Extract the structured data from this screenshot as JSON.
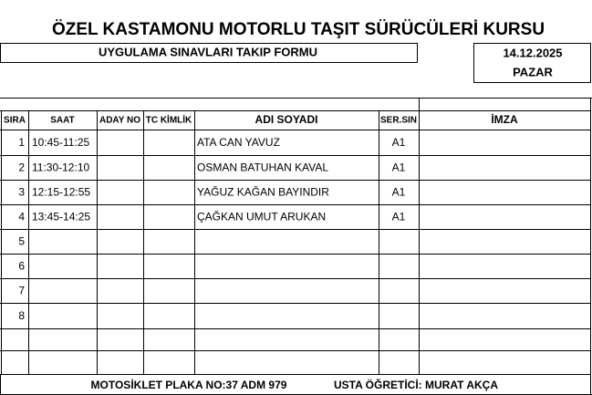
{
  "header": {
    "title": "ÖZEL KASTAMONU MOTORLU TAŞIT SÜRÜCÜLERİ KURSU",
    "subtitle": "UYGULAMA SINAVLARI TAKIP FORMU",
    "date": "14.12.2025",
    "day": "PAZAR"
  },
  "table": {
    "columns": [
      "SIRA",
      "SAAT",
      "ADAY NO",
      "TC KİMLİK",
      "ADI SOYADI",
      "SER.SIN",
      "İMZA"
    ],
    "rows": [
      {
        "no": 1,
        "time": "10:45-11:25",
        "name": "ATA CAN YAVUZ",
        "class": "A1"
      },
      {
        "no": 2,
        "time": "11:30-12:10",
        "name": "OSMAN BATUHAN KAVAL",
        "class": "A1"
      },
      {
        "no": 3,
        "time": "12:15-12:55",
        "name": "YAĞUZ KAĞAN BAYINDIR",
        "class": "A1"
      },
      {
        "no": 4,
        "time": "13:45-14:25",
        "name": "ÇAĞKAN UMUT ARUKAN",
        "class": "A1"
      },
      {
        "no": 5
      },
      {
        "no": 6
      },
      {
        "no": 7
      },
      {
        "no": 8
      }
    ]
  },
  "footer": {
    "plate": "MOTOSİKLET PLAKA NO:37 ADM 979",
    "instructor": "USTA ÖĞRETİCİ: MURAT AKÇA"
  }
}
